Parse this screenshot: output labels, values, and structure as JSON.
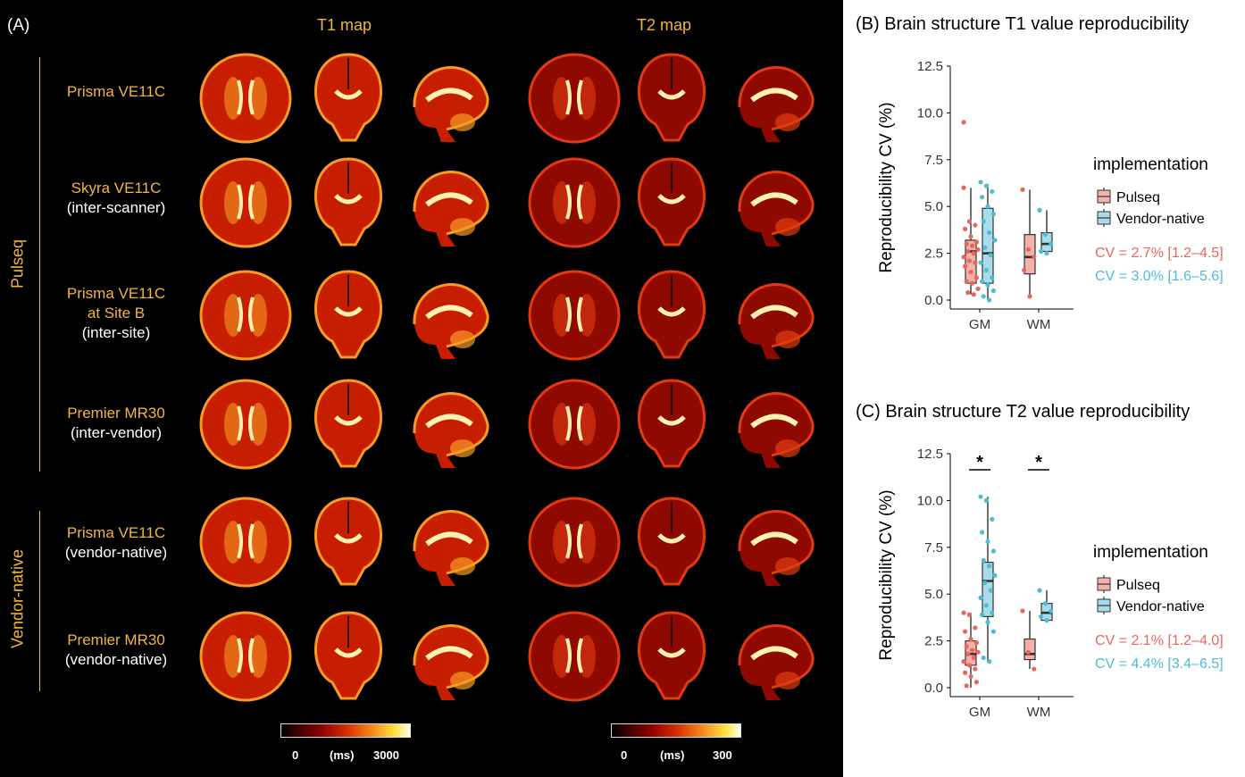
{
  "panel_a": {
    "label": "(A)",
    "map_titles": [
      "T1 map",
      "T2 map"
    ],
    "groups": [
      "Pulseq",
      "Vendor-native"
    ],
    "rows": [
      {
        "line1": "Prisma VE11C",
        "line2": "",
        "line3": ""
      },
      {
        "line1": "Skyra VE11C",
        "line2": "(inter-scanner)",
        "line3": ""
      },
      {
        "line1": "Prisma VE11C",
        "line2": "at Site B",
        "line3": "(inter-site)"
      },
      {
        "line1": "Premier MR30",
        "line2": "(inter-vendor)",
        "line3": ""
      },
      {
        "line1": "Prisma VE11C",
        "line2": "(vendor-native)",
        "line3": ""
      },
      {
        "line1": "Premier MR30",
        "line2": "(vendor-native)",
        "line3": ""
      }
    ],
    "colorbar_t1": {
      "min": "0",
      "unit": "(ms)",
      "max": "3000"
    },
    "colorbar_t2": {
      "min": "0",
      "unit": "(ms)",
      "max": "300"
    }
  },
  "colors": {
    "pulseq": "#e8665d",
    "pulseq_fill": "#f4b1aa",
    "vendor": "#4fbcd6",
    "vendor_fill": "#a9dcea",
    "label_orange": "#f2b63a"
  },
  "chart_data": [
    {
      "type": "box",
      "title": "(B) Brain structure T1 value reproducibility",
      "ylabel": "Reproducibility CV (%)",
      "ylim": [
        0,
        12.5
      ],
      "yticks": [
        "0.0",
        "2.5",
        "5.0",
        "7.5",
        "10.0",
        "12.5"
      ],
      "categories": [
        "GM",
        "WM"
      ],
      "legend_title": "implementation",
      "series": [
        {
          "name": "Pulseq",
          "boxes": [
            {
              "min": 0.3,
              "q1": 0.9,
              "median": 2.6,
              "q3": 3.2,
              "max": 6.0
            },
            {
              "min": 0.2,
              "q1": 1.4,
              "median": 2.3,
              "q3": 3.5,
              "max": 5.9
            }
          ],
          "points": [
            [
              9.5,
              4.2,
              4.0,
              3.8,
              3.4,
              3.1,
              3.0,
              2.9,
              2.7,
              2.6,
              2.5,
              2.3,
              2.1,
              2.0,
              1.8,
              1.5,
              1.2,
              1.0,
              0.9,
              0.6,
              0.4,
              0.3,
              6.0
            ],
            [
              5.9,
              2.7,
              2.3,
              1.6,
              0.2
            ]
          ]
        },
        {
          "name": "Vendor-native",
          "boxes": [
            {
              "min": 0.0,
              "q1": 0.9,
              "median": 2.5,
              "q3": 4.9,
              "max": 6.2
            },
            {
              "min": 2.5,
              "q1": 2.6,
              "median": 3.0,
              "q3": 3.6,
              "max": 4.8
            }
          ],
          "points": [
            [
              6.3,
              6.1,
              5.8,
              5.5,
              5.0,
              4.6,
              4.2,
              3.6,
              3.2,
              2.8,
              2.4,
              2.0,
              1.6,
              1.2,
              1.0,
              0.8,
              0.5,
              0.2,
              0.0
            ],
            [
              4.8,
              3.5,
              3.0,
              2.6,
              2.5
            ]
          ]
        }
      ],
      "annotations": [
        "CV = 2.7% [1.2–4.5]",
        "CV = 3.0% [1.6–5.6]"
      ],
      "significance": []
    },
    {
      "type": "box",
      "title": "(C) Brain structure T2 value reproducibility",
      "ylabel": "Reproducibility CV (%)",
      "ylim": [
        0,
        12.5
      ],
      "yticks": [
        "0.0",
        "2.5",
        "5.0",
        "7.5",
        "10.0",
        "12.5"
      ],
      "categories": [
        "GM",
        "WM"
      ],
      "legend_title": "implementation",
      "series": [
        {
          "name": "Pulseq",
          "boxes": [
            {
              "min": 0.0,
              "q1": 1.2,
              "median": 1.8,
              "q3": 2.5,
              "max": 4.0
            },
            {
              "min": 1.0,
              "q1": 1.5,
              "median": 1.8,
              "q3": 2.6,
              "max": 4.1
            }
          ],
          "points": [
            [
              4.0,
              3.9,
              3.2,
              3.0,
              2.6,
              2.4,
              2.2,
              2.0,
              1.9,
              1.8,
              1.6,
              1.4,
              1.2,
              1.0,
              0.8,
              0.6,
              0.3,
              0.1
            ],
            [
              4.1,
              1.9,
              1.0
            ]
          ]
        },
        {
          "name": "Vendor-native",
          "boxes": [
            {
              "min": 1.4,
              "q1": 3.8,
              "median": 5.7,
              "q3": 6.7,
              "max": 10.2
            },
            {
              "min": 3.6,
              "q1": 3.6,
              "median": 4.0,
              "q3": 4.5,
              "max": 5.2
            }
          ],
          "points": [
            [
              10.2,
              10.0,
              9.0,
              8.3,
              7.8,
              7.3,
              6.8,
              6.5,
              6.0,
              5.6,
              5.2,
              4.8,
              4.4,
              4.0,
              3.9,
              3.5,
              3.0,
              1.6,
              1.4
            ],
            [
              5.2,
              4.5,
              4.1,
              3.8,
              3.6
            ]
          ]
        }
      ],
      "annotations": [
        "CV = 2.1% [1.2–4.0]",
        "CV = 4.4% [3.4–6.5]"
      ],
      "significance": [
        "*",
        "*"
      ]
    }
  ]
}
